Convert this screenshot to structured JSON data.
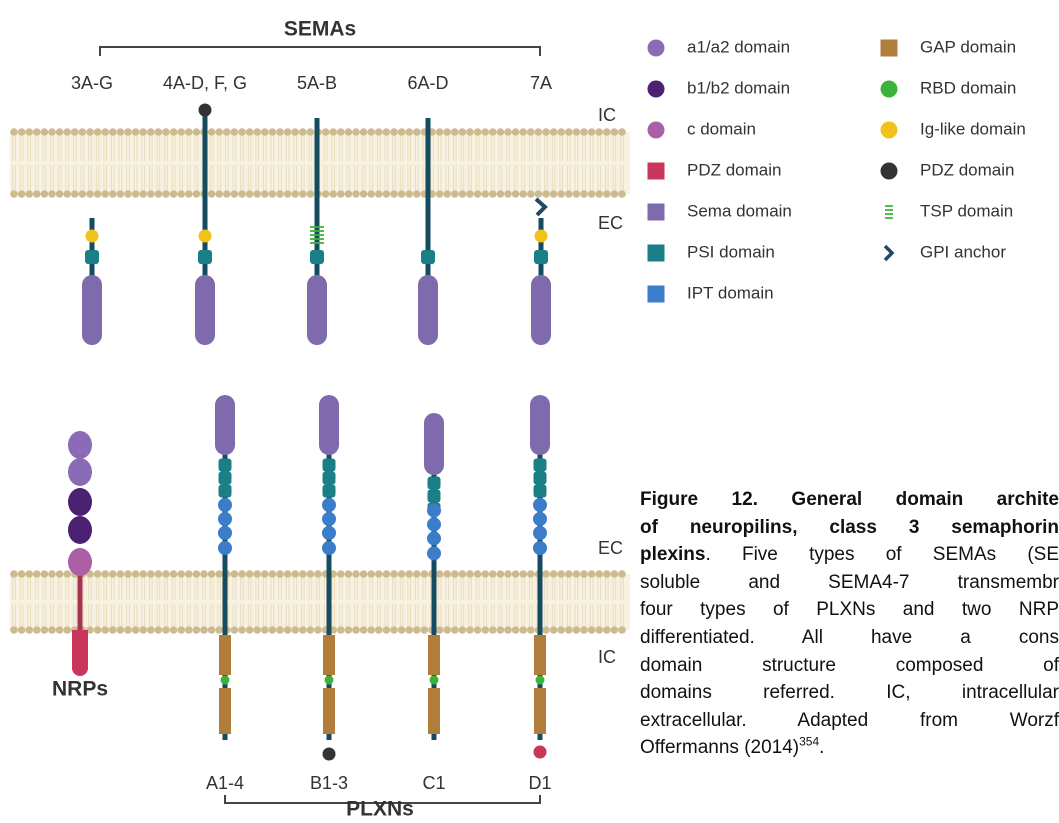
{
  "semas": {
    "title": "SEMAs",
    "classes": [
      "3A-G",
      "4A-D, F, G",
      "5A-B",
      "6A-D",
      "7A"
    ]
  },
  "membrane_labels": {
    "top": [
      "IC",
      "EC"
    ],
    "bottom": [
      "EC",
      "IC"
    ]
  },
  "nrps": {
    "label": "NRPs"
  },
  "plxns": {
    "title": "PLXNs",
    "classes": [
      "A1-4",
      "B1-3",
      "C1",
      "D1"
    ]
  },
  "legend": {
    "items": [
      "a1/a2 domain",
      "b1/b2 domain",
      "c domain",
      "PDZ domain",
      "Sema domain",
      "PSI domain",
      "IPT domain",
      "GAP domain",
      "RBD domain",
      "Ig-like domain",
      "PDZ domain",
      "TSP domain",
      "GPI anchor"
    ]
  },
  "caption": {
    "title": [
      "Figure 12. General domain archite",
      "of neuropilins, class 3 semaphorin",
      "plexins"
    ],
    "text": [
      ". Five types of SEMAs (SE",
      "soluble and SEMA4-7 transmembr",
      "four types of PLXNs and two NRP",
      "differentiated. All have a cons",
      "domain structure composed of",
      "domains referred. IC, intracellular",
      "extracellular. Adapted from Worzf",
      "Offermanns (2014)"
    ],
    "ref": "354",
    "end": "."
  }
}
